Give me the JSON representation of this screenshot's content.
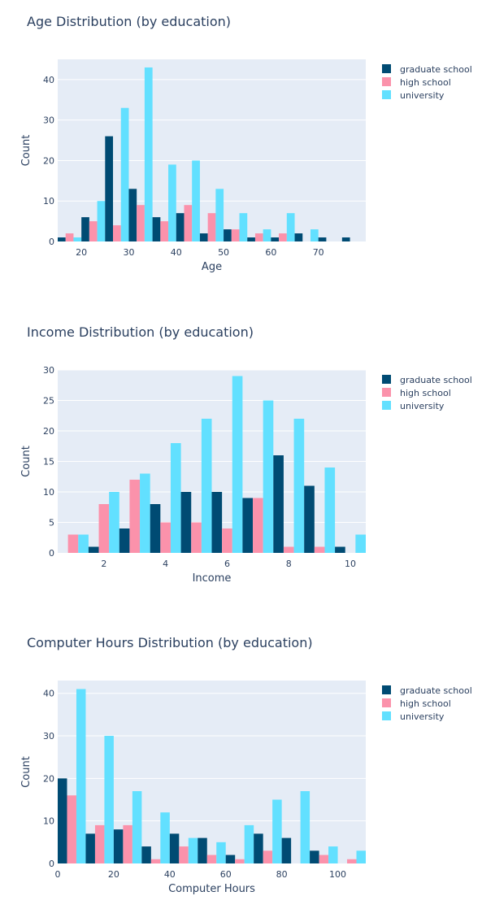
{
  "colors": {
    "graduate school": "#004b73",
    "high school": "#fb92ab",
    "university": "#62e0ff",
    "plot_bg": "#e5ecf6",
    "grid": "#ffffff",
    "text": "#2a3f5f"
  },
  "chart_data": [
    {
      "type": "bar",
      "title": "Age Distribution (by education)",
      "xlabel": "Age",
      "ylabel": "Count",
      "xlim": [
        15,
        80
      ],
      "ylim": [
        0,
        45
      ],
      "xticks": [
        20,
        30,
        40,
        50,
        60,
        70
      ],
      "yticks": [
        0,
        10,
        20,
        30,
        40
      ],
      "bin_start": 15,
      "bin_size": 5,
      "legend": "top-right",
      "grid": true,
      "series": [
        {
          "name": "graduate school",
          "values": [
            1,
            6,
            26,
            13,
            6,
            7,
            2,
            3,
            1,
            1,
            2,
            1,
            1
          ]
        },
        {
          "name": "high school",
          "values": [
            2,
            5,
            4,
            9,
            5,
            9,
            7,
            3,
            2,
            2,
            0,
            0,
            0
          ]
        },
        {
          "name": "university",
          "values": [
            1,
            10,
            33,
            43,
            19,
            20,
            13,
            7,
            3,
            7,
            3,
            0,
            0
          ]
        }
      ]
    },
    {
      "type": "bar",
      "title": "Income Distribution (by education)",
      "xlabel": "Income",
      "ylabel": "Count",
      "xlim": [
        0.5,
        10.5
      ],
      "ylim": [
        0,
        30
      ],
      "xticks": [
        2,
        4,
        6,
        8,
        10
      ],
      "yticks": [
        0,
        5,
        10,
        15,
        20,
        25,
        30
      ],
      "bin_start": 0.5,
      "bin_size": 1,
      "legend": "top-right",
      "grid": true,
      "series": [
        {
          "name": "graduate school",
          "values": [
            0,
            1,
            4,
            8,
            10,
            10,
            9,
            16,
            11,
            1
          ]
        },
        {
          "name": "high school",
          "values": [
            3,
            8,
            12,
            5,
            5,
            4,
            9,
            1,
            1,
            0
          ]
        },
        {
          "name": "university",
          "values": [
            3,
            10,
            13,
            18,
            22,
            29,
            25,
            22,
            14,
            3
          ]
        }
      ]
    },
    {
      "type": "bar",
      "title": "Computer Hours Distribution (by education)",
      "xlabel": "Computer Hours",
      "ylabel": "Count",
      "xlim": [
        0,
        110
      ],
      "ylim": [
        0,
        43
      ],
      "xticks": [
        0,
        20,
        40,
        60,
        80,
        100
      ],
      "yticks": [
        0,
        10,
        20,
        30,
        40
      ],
      "bin_start": 0,
      "bin_size": 10,
      "legend": "top-right",
      "grid": true,
      "series": [
        {
          "name": "graduate school",
          "values": [
            20,
            7,
            8,
            4,
            7,
            6,
            2,
            7,
            6,
            3,
            0
          ]
        },
        {
          "name": "high school",
          "values": [
            16,
            9,
            9,
            1,
            4,
            2,
            1,
            3,
            0,
            2,
            1
          ]
        },
        {
          "name": "university",
          "values": [
            41,
            30,
            17,
            12,
            6,
            5,
            9,
            15,
            17,
            4,
            3
          ]
        }
      ]
    }
  ]
}
